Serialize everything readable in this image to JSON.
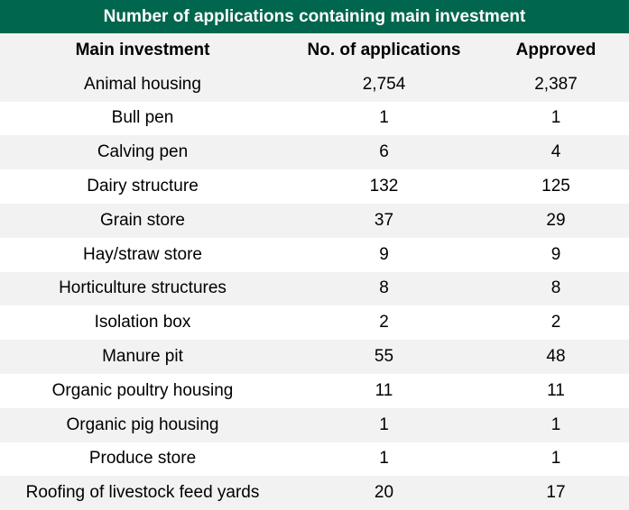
{
  "chart_data": {
    "type": "table",
    "title": "Number of applications containing main investment",
    "columns": [
      "Main investment",
      "No. of applications",
      "Approved"
    ],
    "rows": [
      [
        "Animal housing",
        "2,754",
        "2,387"
      ],
      [
        "Bull pen",
        "1",
        "1"
      ],
      [
        "Calving pen",
        "6",
        "4"
      ],
      [
        "Dairy structure",
        "132",
        "125"
      ],
      [
        "Grain store",
        "37",
        "29"
      ],
      [
        "Hay/straw store",
        "9",
        "9"
      ],
      [
        "Horticulture structures",
        "8",
        "8"
      ],
      [
        "Isolation box",
        "2",
        "2"
      ],
      [
        "Manure pit",
        "55",
        "48"
      ],
      [
        "Organic poultry housing",
        "11",
        "11"
      ],
      [
        "Organic pig housing",
        "1",
        "1"
      ],
      [
        "Produce store",
        "1",
        "1"
      ],
      [
        "Roofing of livestock feed yards",
        "20",
        "17"
      ]
    ]
  },
  "colors": {
    "header": "#00664d",
    "stripe": "#f2f2f2"
  }
}
